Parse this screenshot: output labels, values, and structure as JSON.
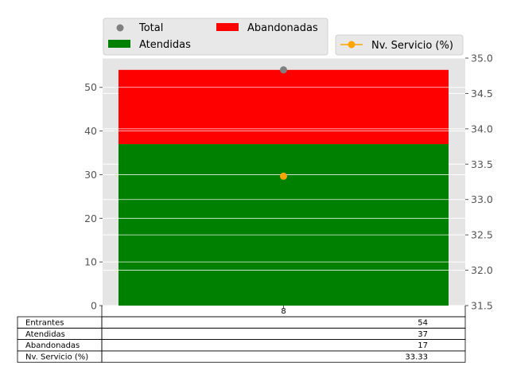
{
  "chart_data": {
    "type": "bar",
    "categories": [
      "8"
    ],
    "series": [
      {
        "name": "Atendidas",
        "values": [
          37
        ],
        "color": "#008000",
        "kind": "stacked-bar"
      },
      {
        "name": "Abandonadas",
        "values": [
          17
        ],
        "color": "#ff0000",
        "kind": "stacked-bar"
      },
      {
        "name": "Total",
        "values": [
          54
        ],
        "color": "#808080",
        "kind": "scatter"
      },
      {
        "name": "Nv. Servicio (%)",
        "values": [
          33.33
        ],
        "color": "#ffa500",
        "kind": "line-marker",
        "axis": "right"
      }
    ],
    "ylim": [
      0,
      56.7
    ],
    "yticks": [
      0,
      10,
      20,
      30,
      40,
      50
    ],
    "y2lim": [
      31.5,
      35.0
    ],
    "y2ticks": [
      "31.5",
      "32.0",
      "32.5",
      "33.0",
      "33.5",
      "34.0",
      "34.5",
      "35.0"
    ],
    "grid": true,
    "legend_left": {
      "placement": "top-left",
      "entries": [
        "Total",
        "Abandonadas",
        "Atendidas"
      ]
    },
    "legend_right": {
      "placement": "top-right",
      "entries": [
        "Nv. Servicio (%)"
      ]
    },
    "table": {
      "rows": [
        {
          "label": "Entrantes",
          "value": "54"
        },
        {
          "label": "Atendidas",
          "value": "37"
        },
        {
          "label": "Abandonadas",
          "value": "17"
        },
        {
          "label": "Nv. Servicio (%)",
          "value": "33.33"
        }
      ]
    }
  }
}
